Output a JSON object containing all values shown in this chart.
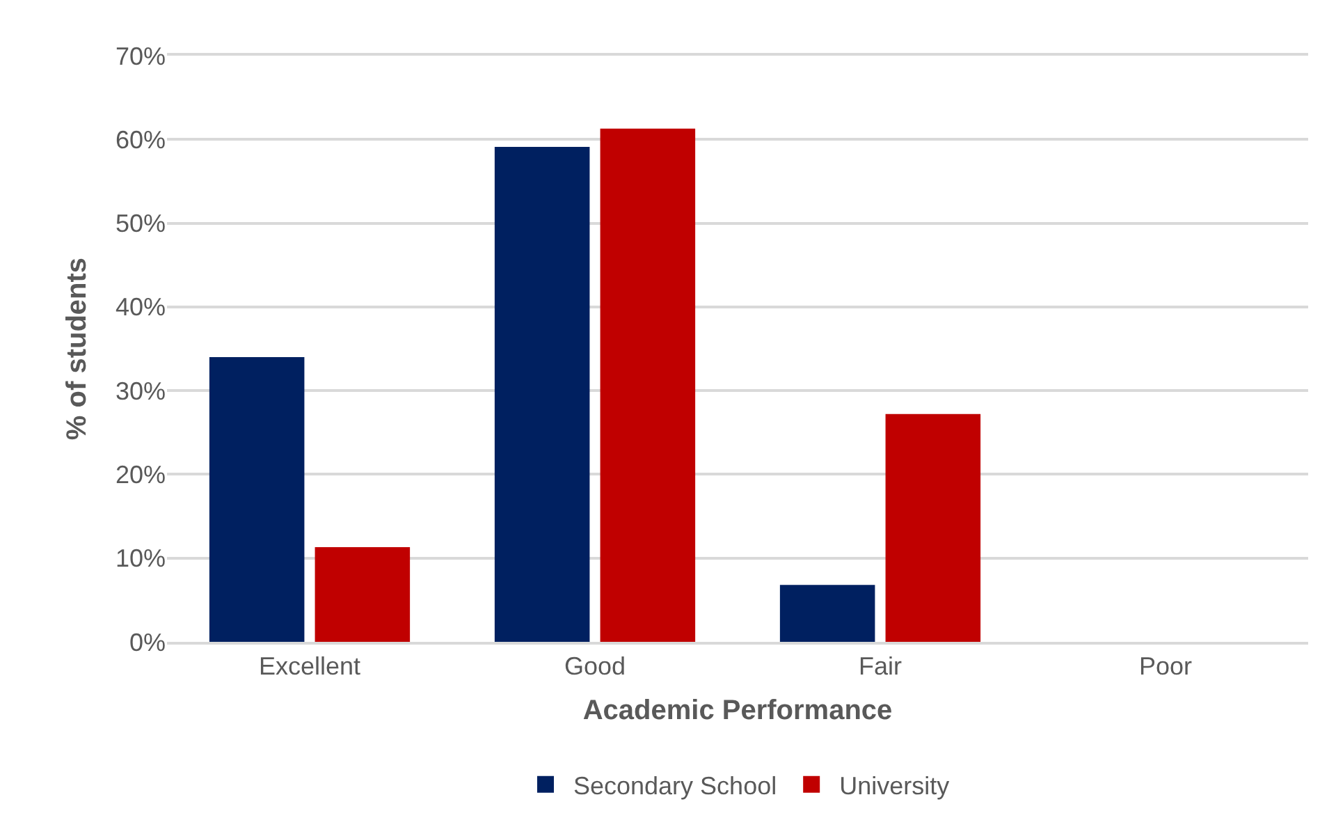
{
  "chart_data": {
    "type": "bar",
    "xlabel": "Academic Performance",
    "ylabel": "% of students",
    "categories": [
      "Excellent",
      "Good",
      "Fair",
      "Poor"
    ],
    "series": [
      {
        "name": "Secondary School",
        "color": "#002060",
        "values": [
          34.0,
          59.1,
          6.8,
          0
        ]
      },
      {
        "name": "University",
        "color": "#c00000",
        "values": [
          11.3,
          61.3,
          27.2,
          0
        ]
      }
    ],
    "ylim": [
      0,
      70
    ],
    "yticks": [
      {
        "value": 0,
        "label": "0%"
      },
      {
        "value": 10,
        "label": "10%"
      },
      {
        "value": 20,
        "label": "20%"
      },
      {
        "value": 30,
        "label": "30%"
      },
      {
        "value": 40,
        "label": "40%"
      },
      {
        "value": 50,
        "label": "50%"
      },
      {
        "value": 60,
        "label": "60%"
      },
      {
        "value": 70,
        "label": "70%"
      }
    ],
    "grid": "y",
    "legend": "bottom"
  }
}
